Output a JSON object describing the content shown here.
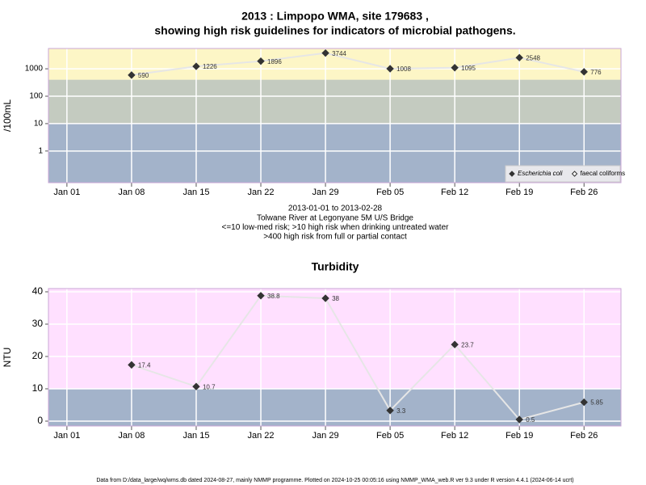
{
  "chart_data": [
    {
      "type": "line",
      "title": "2013 : Limpopo WMA, site 179683 ,",
      "subtitle": "showing high risk guidelines for indicators of microbial pathogens.",
      "y_label": "/100mL",
      "log": true,
      "grid": true,
      "legend": "bottom right",
      "x": [
        "2013-01-08",
        "2013-01-15",
        "2013-01-22",
        "2013-01-29",
        "2013-02-05",
        "2013-02-12",
        "2013-02-19",
        "2013-02-26"
      ],
      "series": [
        {
          "name": "Escherichia coli",
          "color": "#333333",
          "italic": true,
          "values": [
            590,
            1226,
            1896,
            3744,
            1008,
            1095,
            2548,
            776
          ]
        },
        {
          "name": "faecal coliforms",
          "color": "#ffffff",
          "values": [
            null,
            null,
            null,
            null,
            null,
            null,
            null,
            null
          ]
        }
      ],
      "xlim": [
        "2012-12-30",
        "2013-03-02"
      ],
      "xticks": [
        {
          "value": "2013-01-01",
          "label": "Jan 01"
        },
        {
          "value": "2013-01-08",
          "label": "Jan 08"
        },
        {
          "value": "2013-01-15",
          "label": "Jan 15"
        },
        {
          "value": "2013-01-22",
          "label": "Jan 22"
        },
        {
          "value": "2013-01-29",
          "label": "Jan 29"
        },
        {
          "value": "2013-02-05",
          "label": "Feb 05"
        },
        {
          "value": "2013-02-12",
          "label": "Feb 12"
        },
        {
          "value": "2013-02-19",
          "label": "Feb 19"
        },
        {
          "value": "2013-02-26",
          "label": "Feb 26"
        }
      ],
      "ylim": [
        0.07,
        5500
      ],
      "yticks": [
        1,
        10,
        100,
        1000
      ],
      "thresholds": [
        10,
        400
      ],
      "band_colors": [
        "#a3b3ca",
        "#c4cbc0",
        "#fdf6c6"
      ],
      "notes": [
        "2013-01-01 to 2013-02-28",
        "Tolwane River at Legonyane 5M U/S Bridge",
        "<=10 low-med risk; >10 high risk when drinking untreated water",
        ">400 high risk from full or partial contact"
      ]
    },
    {
      "type": "line",
      "title": "Turbidity",
      "y_label": "NTU",
      "log": false,
      "grid": true,
      "x": [
        "2013-01-08",
        "2013-01-15",
        "2013-01-22",
        "2013-01-29",
        "2013-02-05",
        "2013-02-12",
        "2013-02-19",
        "2013-02-26"
      ],
      "series": [
        {
          "name": "Turbidity",
          "color": "#333333",
          "values": [
            17.4,
            10.7,
            38.8,
            38,
            3.3,
            23.7,
            0.5,
            5.85
          ]
        }
      ],
      "xlim": [
        "2012-12-30",
        "2013-03-02"
      ],
      "xticks": [
        {
          "value": "2013-01-01",
          "label": "Jan 01"
        },
        {
          "value": "2013-01-08",
          "label": "Jan 08"
        },
        {
          "value": "2013-01-15",
          "label": "Jan 15"
        },
        {
          "value": "2013-01-22",
          "label": "Jan 22"
        },
        {
          "value": "2013-01-29",
          "label": "Jan 29"
        },
        {
          "value": "2013-02-05",
          "label": "Feb 05"
        },
        {
          "value": "2013-02-12",
          "label": "Feb 12"
        },
        {
          "value": "2013-02-19",
          "label": "Feb 19"
        },
        {
          "value": "2013-02-26",
          "label": "Feb 26"
        }
      ],
      "ylim": [
        -1.5,
        41
      ],
      "yticks": [
        0,
        10,
        20,
        30,
        40
      ],
      "thresholds": [
        10
      ],
      "band_colors": [
        "#a3b3ca",
        "#ffe0ff"
      ]
    }
  ],
  "footer": "Data from D:/data_large/wq/wms.db dated 2024-08-27, mainly NMMP programme. Plotted on 2024-10-25 00:05:16 using NMMP_WMA_web.R ver 9.3 under R version 4.4.1 (2024-06-14 ucrt)"
}
